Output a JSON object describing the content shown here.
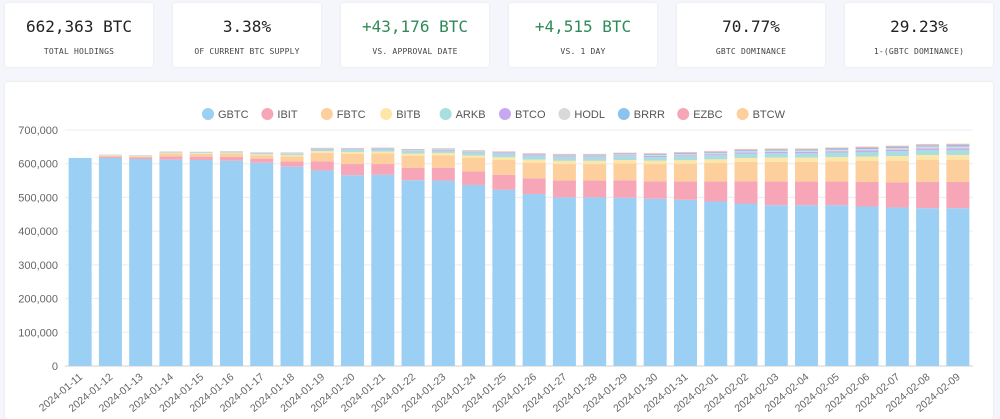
{
  "stats": [
    {
      "value": "662,363 BTC",
      "label": "TOTAL HOLDINGS",
      "positive": false
    },
    {
      "value": "3.38%",
      "label": "OF CURRENT BTC SUPPLY",
      "positive": false
    },
    {
      "value": "+43,176 BTC",
      "label": "VS. APPROVAL DATE",
      "positive": true
    },
    {
      "value": "+4,515 BTC",
      "label": "VS. 1 DAY",
      "positive": true
    },
    {
      "value": "70.77%",
      "label": "GBTC DOMINANCE",
      "positive": false
    },
    {
      "value": "29.23%",
      "label": "1-(GBTC DOMINANCE)",
      "positive": false
    }
  ],
  "chart_data": {
    "type": "bar",
    "stacked": true,
    "legend_position": "top",
    "grid": true,
    "ylim": [
      0,
      700000
    ],
    "yticks": [
      0,
      100000,
      200000,
      300000,
      400000,
      500000,
      600000,
      700000
    ],
    "ytick_labels": [
      "0",
      "100,000",
      "200,000",
      "300,000",
      "400,000",
      "500,000",
      "600,000",
      "700,000"
    ],
    "categories": [
      "2024-01-11",
      "2024-01-12",
      "2024-01-13",
      "2024-01-14",
      "2024-01-15",
      "2024-01-16",
      "2024-01-17",
      "2024-01-18",
      "2024-01-19",
      "2024-01-20",
      "2024-01-21",
      "2024-01-22",
      "2024-01-23",
      "2024-01-24",
      "2024-01-25",
      "2024-01-26",
      "2024-01-27",
      "2024-01-28",
      "2024-01-29",
      "2024-01-30",
      "2024-01-31",
      "2024-02-01",
      "2024-02-02",
      "2024-02-03",
      "2024-02-04",
      "2024-02-05",
      "2024-02-06",
      "2024-02-07",
      "2024-02-08",
      "2024-02-09"
    ],
    "series": [
      {
        "name": "GBTC",
        "color": "#9ccff4",
        "values": [
          617000,
          617000,
          614000,
          612000,
          611000,
          609000,
          603000,
          591000,
          580000,
          566000,
          567000,
          551000,
          550000,
          537000,
          523000,
          510000,
          500000,
          500000,
          499000,
          496000,
          493000,
          488000,
          482000,
          477000,
          477000,
          477000,
          473000,
          470000,
          468000,
          468000
        ]
      },
      {
        "name": "IBIT",
        "color": "#f7a6b8",
        "values": [
          0,
          4000,
          4500,
          10000,
          10000,
          11000,
          12000,
          16000,
          27000,
          33000,
          32000,
          37000,
          38000,
          40000,
          44000,
          47000,
          50000,
          50000,
          52000,
          52000,
          54000,
          59000,
          66000,
          70000,
          70000,
          70000,
          73000,
          75000,
          78000,
          78000
        ]
      },
      {
        "name": "FBTC",
        "color": "#fccf9c",
        "values": [
          0,
          3000,
          3500,
          8500,
          8500,
          10000,
          10000,
          15000,
          25000,
          30000,
          31000,
          35000,
          37000,
          40000,
          44000,
          46000,
          49000,
          49000,
          50000,
          51000,
          53000,
          55000,
          57000,
          59000,
          59000,
          60000,
          62000,
          64000,
          66000,
          66000
        ]
      },
      {
        "name": "BITB",
        "color": "#fde6a8",
        "values": [
          0,
          1000,
          1000,
          2000,
          2000,
          2500,
          3000,
          4000,
          5500,
          6000,
          6000,
          7000,
          7000,
          7500,
          8000,
          9000,
          9500,
          9500,
          10000,
          10000,
          10500,
          11000,
          12000,
          12000,
          12000,
          12500,
          13000,
          13500,
          14000,
          14000
        ]
      },
      {
        "name": "ARKB",
        "color": "#a8dede",
        "values": [
          0,
          1000,
          1000,
          2000,
          2000,
          2500,
          3000,
          4000,
          5000,
          6000,
          6000,
          7000,
          7000,
          8000,
          9000,
          10000,
          10500,
          10500,
          11000,
          11000,
          11500,
          12000,
          12500,
          13000,
          13000,
          13500,
          14000,
          14500,
          15000,
          15000
        ]
      },
      {
        "name": "BTCO",
        "color": "#c7a8f0",
        "values": [
          0,
          300,
          300,
          500,
          500,
          600,
          700,
          900,
          1200,
          1400,
          1500,
          1700,
          1800,
          2000,
          2200,
          2400,
          2600,
          2600,
          2800,
          3000,
          3200,
          3400,
          3600,
          3800,
          3800,
          4000,
          4200,
          4400,
          4600,
          4800
        ]
      },
      {
        "name": "HODL",
        "color": "#d9d9d9",
        "values": [
          0,
          200,
          300,
          500,
          500,
          600,
          700,
          900,
          1300,
          1600,
          1600,
          1900,
          2000,
          2200,
          2400,
          2600,
          2800,
          2800,
          3000,
          3200,
          3400,
          3600,
          3800,
          4000,
          4000,
          4200,
          4400,
          4600,
          4800,
          5000
        ]
      },
      {
        "name": "BRRR",
        "color": "#8cc3ee",
        "values": [
          0,
          300,
          300,
          500,
          500,
          600,
          700,
          900,
          1200,
          1400,
          1400,
          1600,
          1700,
          1900,
          2100,
          2300,
          2500,
          2500,
          2700,
          2900,
          3100,
          3300,
          3500,
          3700,
          3700,
          3900,
          4100,
          4300,
          4500,
          4700
        ]
      },
      {
        "name": "EZBC",
        "color": "#f7a6b8",
        "values": [
          0,
          100,
          100,
          200,
          200,
          300,
          400,
          500,
          700,
          900,
          900,
          1000,
          1100,
          1200,
          1300,
          1400,
          1500,
          1500,
          1600,
          1700,
          1800,
          1900,
          2000,
          2100,
          2100,
          2200,
          2300,
          2400,
          2500,
          2600
        ]
      },
      {
        "name": "BTCW",
        "color": "#fccf9c",
        "values": [
          0,
          100,
          100,
          200,
          200,
          200,
          300,
          300,
          400,
          500,
          500,
          600,
          600,
          700,
          700,
          800,
          800,
          800,
          900,
          900,
          1000,
          1000,
          1100,
          1100,
          1100,
          1200,
          1200,
          1300,
          1300,
          1400
        ]
      }
    ]
  }
}
